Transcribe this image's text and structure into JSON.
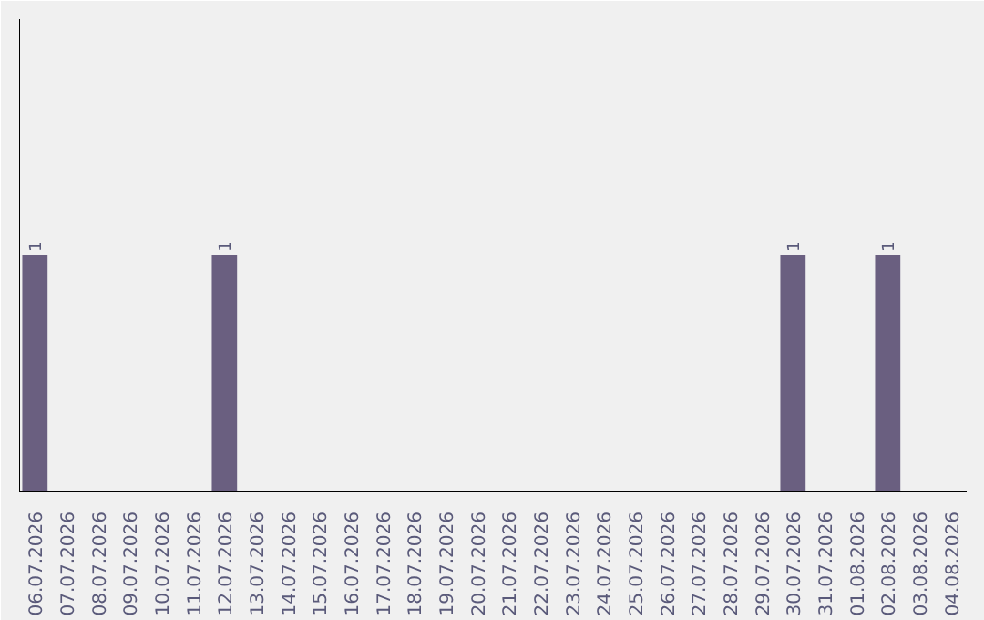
{
  "chart_data": {
    "type": "bar",
    "categories": [
      "06.07.2026",
      "07.07.2026",
      "08.07.2026",
      "09.07.2026",
      "10.07.2026",
      "11.07.2026",
      "12.07.2026",
      "13.07.2026",
      "14.07.2026",
      "15.07.2026",
      "16.07.2026",
      "17.07.2026",
      "18.07.2026",
      "19.07.2026",
      "20.07.2026",
      "21.07.2026",
      "22.07.2026",
      "23.07.2026",
      "24.07.2026",
      "25.07.2026",
      "26.07.2026",
      "27.07.2026",
      "28.07.2026",
      "29.07.2026",
      "30.07.2026",
      "31.07.2026",
      "01.08.2026",
      "02.08.2026",
      "03.08.2026",
      "04.08.2026"
    ],
    "values": [
      1,
      0,
      0,
      0,
      0,
      0,
      1,
      0,
      0,
      0,
      0,
      0,
      0,
      0,
      0,
      0,
      0,
      0,
      0,
      0,
      0,
      0,
      0,
      0,
      1,
      0,
      0,
      1,
      0,
      0
    ],
    "value_labels": [
      "1",
      null,
      null,
      null,
      null,
      null,
      "1",
      null,
      null,
      null,
      null,
      null,
      null,
      null,
      null,
      null,
      null,
      null,
      null,
      null,
      null,
      null,
      null,
      null,
      "1",
      null,
      null,
      "1",
      null,
      null
    ],
    "color": "#6a5f80",
    "ylim": [
      0,
      2
    ],
    "tick_labels": "x",
    "grid": false
  }
}
